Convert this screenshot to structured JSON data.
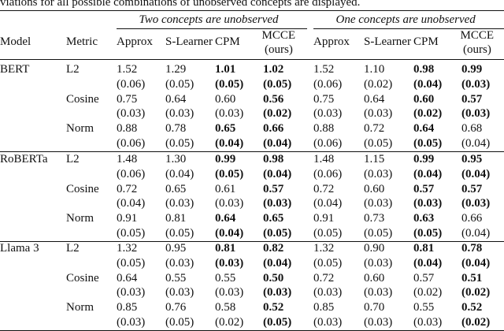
{
  "caption": "viations for all possible combinations of unobserved concepts are displayed.",
  "table": {
    "groups": [
      "Two concepts are unobserved",
      "One concepts are unobserved"
    ],
    "columns": {
      "model": "Model",
      "metric": "Metric",
      "methods": [
        {
          "line1": "Approx"
        },
        {
          "line1": "S-Learner"
        },
        {
          "line1": "CPM"
        },
        {
          "line1": "MCCE",
          "line2": "(ours)"
        },
        {
          "line1": "Approx"
        },
        {
          "line1": "S-Learner"
        },
        {
          "line1": "CPM"
        },
        {
          "line1": "MCCE",
          "line2": "(ours)"
        }
      ]
    },
    "rows": [
      {
        "model": "BERT",
        "metrics": [
          {
            "metric": "L2",
            "cells": [
              {
                "value": "1.52",
                "std": "(0.06)"
              },
              {
                "value": "1.29",
                "std": "(0.05)"
              },
              {
                "value": "1.01",
                "std": "(0.05)",
                "bold": true
              },
              {
                "value": "1.02",
                "std": "(0.05)",
                "bold": true
              },
              {
                "value": "1.52",
                "std": "(0.06)"
              },
              {
                "value": "1.10",
                "std": "(0.02)"
              },
              {
                "value": "0.98",
                "std": "(0.04)",
                "bold": true
              },
              {
                "value": "0.99",
                "std": "(0.03)",
                "bold": true
              }
            ]
          },
          {
            "metric": "Cosine",
            "cells": [
              {
                "value": "0.75",
                "std": "(0.03)"
              },
              {
                "value": "0.64",
                "std": "(0.03)"
              },
              {
                "value": "0.60",
                "std": "(0.03)"
              },
              {
                "value": "0.56",
                "std": "(0.02)",
                "bold": true
              },
              {
                "value": "0.75",
                "std": "(0.03)"
              },
              {
                "value": "0.64",
                "std": "(0.03)"
              },
              {
                "value": "0.60",
                "std": "(0.02)",
                "bold": true
              },
              {
                "value": "0.57",
                "std": "(0.03)",
                "bold": true
              }
            ]
          },
          {
            "metric": "Norm",
            "cells": [
              {
                "value": "0.88",
                "std": "(0.06)"
              },
              {
                "value": "0.78",
                "std": "(0.05)"
              },
              {
                "value": "0.65",
                "std": "(0.04)",
                "bold": true
              },
              {
                "value": "0.66",
                "std": "(0.04)",
                "bold": true
              },
              {
                "value": "0.88",
                "std": "(0.06)"
              },
              {
                "value": "0.72",
                "std": "(0.05)"
              },
              {
                "value": "0.64",
                "std": "(0.05)",
                "bold": true
              },
              {
                "value": "0.68",
                "std": "(0.04)"
              }
            ]
          }
        ]
      },
      {
        "model": "RoBERTa",
        "metrics": [
          {
            "metric": "L2",
            "cells": [
              {
                "value": "1.48",
                "std": "(0.06)"
              },
              {
                "value": "1.30",
                "std": "(0.04)"
              },
              {
                "value": "0.99",
                "std": "(0.05)",
                "bold": true
              },
              {
                "value": "0.98",
                "std": "(0.04)",
                "bold": true
              },
              {
                "value": "1.48",
                "std": "(0.06)"
              },
              {
                "value": "1.15",
                "std": "(0.03)"
              },
              {
                "value": "0.99",
                "std": "(0.04)",
                "bold": true
              },
              {
                "value": "0.95",
                "std": "(0.04)",
                "bold": true
              }
            ]
          },
          {
            "metric": "Cosine",
            "cells": [
              {
                "value": "0.72",
                "std": "(0.04)"
              },
              {
                "value": "0.65",
                "std": "(0.03)"
              },
              {
                "value": "0.61",
                "std": "(0.03)"
              },
              {
                "value": "0.57",
                "std": "(0.03)",
                "bold": true
              },
              {
                "value": "0.72",
                "std": "(0.04)"
              },
              {
                "value": "0.60",
                "std": "(0.03)"
              },
              {
                "value": "0.57",
                "std": "(0.03)",
                "bold": true
              },
              {
                "value": "0.57",
                "std": "(0.03)",
                "bold": true
              }
            ]
          },
          {
            "metric": "Norm",
            "cells": [
              {
                "value": "0.91",
                "std": "(0.05)"
              },
              {
                "value": "0.81",
                "std": "(0.05)"
              },
              {
                "value": "0.64",
                "std": "(0.04)",
                "bold": true
              },
              {
                "value": "0.65",
                "std": "(0.05)",
                "bold": true
              },
              {
                "value": "0.91",
                "std": "(0.05)"
              },
              {
                "value": "0.73",
                "std": "(0.05)"
              },
              {
                "value": "0.63",
                "std": "(0.05)",
                "bold": true
              },
              {
                "value": "0.66",
                "std": "(0.04)"
              }
            ]
          }
        ]
      },
      {
        "model": "Llama 3",
        "metrics": [
          {
            "metric": "L2",
            "cells": [
              {
                "value": "1.32",
                "std": "(0.05)"
              },
              {
                "value": "0.95",
                "std": "(0.03)"
              },
              {
                "value": "0.81",
                "std": "(0.03)",
                "bold": true
              },
              {
                "value": "0.82",
                "std": "(0.04)",
                "bold": true
              },
              {
                "value": "1.32",
                "std": "(0.05)"
              },
              {
                "value": "0.90",
                "std": "(0.03)"
              },
              {
                "value": "0.81",
                "std": "(0.04)",
                "bold": true
              },
              {
                "value": "0.78",
                "std": "(0.04)",
                "bold": true
              }
            ]
          },
          {
            "metric": "Cosine",
            "cells": [
              {
                "value": "0.64",
                "std": "(0.03)"
              },
              {
                "value": "0.55",
                "std": "(0.03)"
              },
              {
                "value": "0.55",
                "std": "(0.03)"
              },
              {
                "value": "0.50",
                "std": "(0.03)",
                "bold": true
              },
              {
                "value": "0.72",
                "std": "(0.03)"
              },
              {
                "value": "0.60",
                "std": "(0.03)"
              },
              {
                "value": "0.57",
                "std": "(0.02)"
              },
              {
                "value": "0.51",
                "std": "(0.02)",
                "bold": true
              }
            ]
          },
          {
            "metric": "Norm",
            "cells": [
              {
                "value": "0.85",
                "std": "(0.03)"
              },
              {
                "value": "0.76",
                "std": "(0.05)"
              },
              {
                "value": "0.58",
                "std": "(0.02)"
              },
              {
                "value": "0.52",
                "std": "(0.05)",
                "bold": true
              },
              {
                "value": "0.85",
                "std": "(0.03)"
              },
              {
                "value": "0.70",
                "std": "(0.03)"
              },
              {
                "value": "0.55",
                "std": "(0.03)"
              },
              {
                "value": "0.52",
                "std": "(0.02)",
                "bold": true
              }
            ]
          }
        ]
      }
    ]
  }
}
